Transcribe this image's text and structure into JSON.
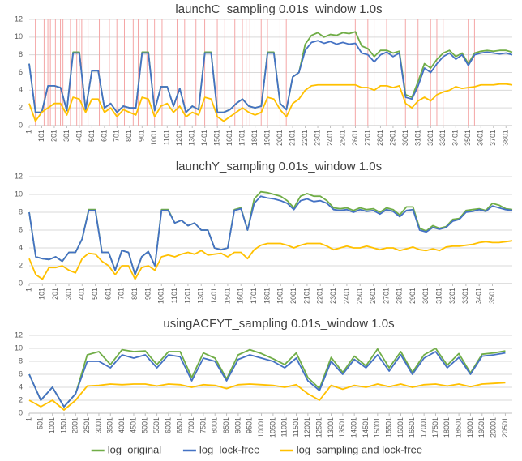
{
  "chart_data": [
    {
      "type": "line",
      "title": "launchC_sampling 0.01s_window 1.0s",
      "x": [
        1,
        51,
        101,
        151,
        201,
        251,
        301,
        351,
        401,
        451,
        501,
        551,
        601,
        651,
        701,
        751,
        801,
        851,
        901,
        951,
        1001,
        1051,
        1101,
        1151,
        1201,
        1251,
        1301,
        1351,
        1401,
        1451,
        1501,
        1551,
        1601,
        1651,
        1701,
        1751,
        1801,
        1851,
        1901,
        1951,
        2001,
        2051,
        2101,
        2151,
        2201,
        2251,
        2301,
        2351,
        2401,
        2451,
        2501,
        2551,
        2601,
        2651,
        2701,
        2751,
        2801,
        2851,
        2901,
        2951,
        3001,
        3051,
        3101,
        3151,
        3201,
        3251,
        3301,
        3351,
        3401,
        3451,
        3501,
        3551,
        3601,
        3651,
        3701,
        3751,
        3801,
        3851
      ],
      "series": [
        {
          "name": "log_original",
          "color": "#70ad47",
          "values": [
            7,
            1.5,
            1.5,
            4.5,
            4.5,
            4.3,
            1.7,
            8.3,
            8.3,
            1.8,
            6.2,
            6.2,
            2,
            2.5,
            1.5,
            2.2,
            2,
            2,
            8.3,
            8.3,
            1.7,
            4.4,
            4.4,
            2.2,
            4.2,
            1.5,
            2.2,
            1.8,
            8.3,
            8.3,
            1.5,
            1.5,
            1.8,
            2.5,
            3,
            2.2,
            2,
            2.2,
            8.3,
            8.3,
            2.5,
            1.8,
            5.5,
            6,
            9.2,
            10.2,
            10.5,
            10,
            10.3,
            10.2,
            10.5,
            10.4,
            10.6,
            9,
            8.7,
            7.8,
            8.5,
            8.5,
            8.2,
            8.4,
            3.5,
            3.2,
            5,
            7,
            6.5,
            7.5,
            8.2,
            8.5,
            7.8,
            8.2,
            7,
            8.2,
            8.4,
            8.5,
            8.4,
            8.5,
            8.5,
            8.3
          ]
        },
        {
          "name": "log_lock-free",
          "color": "#4472c4",
          "values": [
            7,
            1.5,
            1.5,
            4.5,
            4.5,
            4.3,
            1.7,
            8.2,
            8.2,
            1.8,
            6.2,
            6.2,
            2,
            2.5,
            1.5,
            2.2,
            2,
            2,
            8.2,
            8.2,
            1.7,
            4.4,
            4.4,
            2.2,
            4.2,
            1.5,
            2.2,
            1.8,
            8.2,
            8.2,
            1.5,
            1.5,
            1.8,
            2.5,
            3,
            2.2,
            2,
            2.2,
            8.2,
            8.2,
            2.5,
            1.8,
            5.5,
            6,
            8.5,
            9.4,
            9.6,
            9.3,
            9.5,
            9.2,
            9.4,
            9.2,
            9.3,
            8.2,
            8,
            7.2,
            8,
            8.3,
            7.8,
            8.2,
            3.2,
            3,
            4.5,
            6.5,
            6,
            7,
            7.8,
            8.2,
            7.5,
            8,
            6.8,
            8,
            8.2,
            8.3,
            8.2,
            8.1,
            8.2,
            8
          ]
        },
        {
          "name": "log_sampling and lock-free",
          "color": "#ffc000",
          "values": [
            2.5,
            0.5,
            1.5,
            2,
            2.5,
            2.5,
            1.2,
            3.2,
            3,
            1.5,
            3,
            3,
            1.5,
            2,
            1,
            1.8,
            1.5,
            1.2,
            3.2,
            3,
            1,
            2.2,
            2.5,
            1.5,
            2.2,
            1,
            1.5,
            1.2,
            3.2,
            3,
            1,
            0.5,
            1,
            1.5,
            2,
            1.5,
            1.2,
            1.5,
            3.2,
            3,
            1.8,
            1,
            2.5,
            3,
            4,
            4.5,
            4.6,
            4.6,
            4.6,
            4.6,
            4.6,
            4.6,
            4.6,
            4.3,
            4.3,
            4,
            4.5,
            4.5,
            4.3,
            4.5,
            2.5,
            2,
            2.8,
            3.2,
            2.8,
            3.5,
            3.8,
            4,
            4.4,
            4.2,
            4.3,
            4.4,
            4.6,
            4.6,
            4.6,
            4.7,
            4.7,
            4.6
          ]
        }
      ],
      "vlines": [
        50,
        120,
        150,
        170,
        210,
        250,
        270,
        330,
        380,
        400,
        420,
        470,
        560,
        640,
        700,
        760,
        830,
        870,
        940,
        1000,
        1060,
        1180,
        1240,
        1330,
        1400,
        1500,
        1560,
        1640,
        1700,
        1730,
        1760,
        1800,
        1850,
        1900,
        2000,
        2050,
        2600,
        2700,
        2750,
        2850,
        3000,
        3100,
        3200,
        3250,
        3300,
        3500,
        3550
      ],
      "vline_color": "#f4a6a6",
      "xlim": [
        1,
        3851
      ],
      "xticks": [
        1,
        101,
        201,
        301,
        401,
        501,
        601,
        701,
        801,
        901,
        1001,
        1101,
        1201,
        1301,
        1401,
        1501,
        1601,
        1701,
        1801,
        1901,
        2001,
        2101,
        2201,
        2301,
        2401,
        2501,
        2601,
        2701,
        2801,
        2901,
        3001,
        3101,
        3201,
        3301,
        3401,
        3501,
        3601,
        3701,
        3801
      ],
      "ylim": [
        0,
        12
      ],
      "yticks": [
        0,
        2,
        4,
        6,
        8,
        10,
        12
      ],
      "grid": true
    },
    {
      "type": "line",
      "title": "launchY_sampling 0.01s_window 1.0s",
      "x": [
        1,
        51,
        101,
        151,
        201,
        251,
        301,
        351,
        401,
        451,
        501,
        551,
        601,
        651,
        701,
        751,
        801,
        851,
        901,
        951,
        1001,
        1051,
        1101,
        1151,
        1201,
        1251,
        1301,
        1351,
        1401,
        1451,
        1501,
        1551,
        1601,
        1651,
        1701,
        1751,
        1801,
        1851,
        1901,
        1951,
        2001,
        2051,
        2101,
        2151,
        2201,
        2251,
        2301,
        2351,
        2401,
        2451,
        2501,
        2551,
        2601,
        2651,
        2701,
        2751,
        2801,
        2851,
        2901,
        2951,
        3001,
        3051,
        3101,
        3151,
        3201,
        3251,
        3301,
        3351,
        3401,
        3451,
        3501,
        3551,
        3601,
        3651
      ],
      "series": [
        {
          "name": "log_original",
          "color": "#70ad47",
          "values": [
            8,
            3,
            2.8,
            2.7,
            3,
            2.5,
            3.5,
            3.5,
            5,
            8.3,
            8.3,
            3.5,
            3.5,
            1.5,
            3.7,
            3.5,
            1,
            3,
            3.6,
            2,
            8.3,
            8.3,
            6.8,
            7.1,
            6.5,
            6.8,
            6,
            6,
            4,
            3.8,
            4,
            8.3,
            8.5,
            6,
            9.5,
            10.3,
            10.2,
            10,
            9.8,
            9.3,
            8.5,
            9.8,
            10.1,
            9.8,
            9.8,
            9.3,
            8.5,
            8.4,
            8.5,
            8.2,
            8.5,
            8.3,
            8.4,
            8,
            8.5,
            8.3,
            7.7,
            8.6,
            8.6,
            6.2,
            5.9,
            6.5,
            6.2,
            6.4,
            7.2,
            7.3,
            8.2,
            8.3,
            8.4,
            8.2,
            9,
            8.8,
            8.4,
            8.3
          ]
        },
        {
          "name": "log_lock-free",
          "color": "#4472c4",
          "values": [
            8,
            3,
            2.8,
            2.7,
            3,
            2.5,
            3.5,
            3.5,
            5,
            8.2,
            8.2,
            3.5,
            3.5,
            1.5,
            3.7,
            3.5,
            1,
            3,
            3.6,
            2,
            8.2,
            8.2,
            6.8,
            7.1,
            6.5,
            6.8,
            6,
            6,
            4,
            3.8,
            4,
            8.2,
            8.4,
            6,
            9,
            9.8,
            9.6,
            9.5,
            9.3,
            9,
            8.3,
            9.3,
            9.5,
            9.2,
            9.3,
            9,
            8.3,
            8.2,
            8.3,
            8,
            8.3,
            8.1,
            8.2,
            7.8,
            8.3,
            8.1,
            7.5,
            8.2,
            8.3,
            6,
            5.8,
            6.3,
            6.1,
            6.3,
            7,
            7.2,
            8,
            8.1,
            8.3,
            8.1,
            8.7,
            8.5,
            8.3,
            8.2
          ]
        },
        {
          "name": "log_sampling and lock-free",
          "color": "#ffc000",
          "values": [
            2.8,
            1,
            0.5,
            1.8,
            1.8,
            2,
            1.5,
            1.2,
            2.8,
            3.4,
            3.3,
            2.5,
            2,
            1,
            2,
            2,
            0.5,
            1.8,
            2,
            1.5,
            3,
            3.2,
            3,
            3.3,
            3.5,
            3.3,
            3.7,
            3.2,
            3.3,
            3.4,
            3,
            3.5,
            3.5,
            2.8,
            3.8,
            4.3,
            4.5,
            4.5,
            4.5,
            4.3,
            4,
            4.3,
            4.5,
            4.5,
            4.5,
            4.2,
            3.8,
            4,
            4.2,
            4,
            4,
            4.2,
            4,
            3.8,
            4,
            4,
            3.7,
            3.9,
            4.1,
            3.8,
            3.7,
            3.9,
            3.7,
            4.1,
            4.2,
            4.2,
            4.3,
            4.4,
            4.6,
            4.7,
            4.6,
            4.6,
            4.7,
            4.8
          ]
        }
      ],
      "xlim": [
        1,
        3651
      ],
      "xticks": [
        1,
        101,
        201,
        301,
        401,
        501,
        601,
        701,
        801,
        901,
        1001,
        1101,
        1201,
        1301,
        1401,
        1501,
        1601,
        1701,
        1801,
        1901,
        2001,
        2101,
        2201,
        2301,
        2401,
        2501,
        2601,
        2701,
        2801,
        2901,
        3001,
        3101,
        3201,
        3301,
        3401,
        3501
      ],
      "ylim": [
        0,
        12
      ],
      "yticks": [
        0,
        2,
        4,
        6,
        8,
        10,
        12
      ],
      "grid": true
    },
    {
      "type": "line",
      "title": "usingACFYT_sampling 0.01s_window 1.0s",
      "x": [
        1,
        501,
        1001,
        1501,
        2001,
        2501,
        3001,
        3501,
        4001,
        4501,
        5001,
        5501,
        6001,
        6501,
        7001,
        7501,
        8001,
        8501,
        9001,
        9501,
        10001,
        10501,
        11001,
        11501,
        12001,
        12501,
        13001,
        13501,
        14001,
        14501,
        15001,
        15501,
        16001,
        16501,
        17001,
        17501,
        18001,
        18501,
        19001,
        19501,
        20001,
        20501
      ],
      "series": [
        {
          "name": "log_original",
          "color": "#70ad47",
          "values": [
            6,
            2,
            4,
            1,
            3,
            9,
            9.5,
            7.5,
            9.8,
            9.5,
            9.6,
            7.5,
            9.5,
            9.5,
            5.5,
            9.3,
            8.5,
            5.3,
            9,
            9.8,
            9.2,
            8.4,
            7.5,
            9.3,
            5.5,
            3.8,
            8.6,
            6.3,
            8.8,
            7.3,
            9.9,
            7,
            9.5,
            6.3,
            9,
            10,
            7.4,
            9.2,
            6.2,
            9.1,
            9.3,
            9.6
          ]
        },
        {
          "name": "log_lock-free",
          "color": "#4472c4",
          "values": [
            6,
            2,
            4,
            1,
            3,
            8,
            8,
            7,
            9,
            8.5,
            9,
            7,
            9,
            8.7,
            5,
            8.5,
            8,
            5,
            8.3,
            9,
            8.5,
            8,
            7,
            8.5,
            5,
            3.5,
            8,
            6,
            8.3,
            7,
            9,
            6.5,
            9,
            6,
            8.5,
            9.5,
            7,
            8.6,
            6,
            8.8,
            9,
            9.3
          ]
        },
        {
          "name": "log_sampling and lock-free",
          "color": "#ffc000",
          "values": [
            2,
            1,
            2,
            0.5,
            2,
            4.2,
            4.3,
            4.5,
            4.4,
            4.5,
            4.5,
            4.2,
            4.5,
            4.4,
            4,
            4.4,
            4.3,
            3.8,
            4.4,
            4.5,
            4.4,
            4.3,
            4,
            4.4,
            3,
            2,
            4.3,
            3.7,
            4.3,
            4,
            4.5,
            4.1,
            4.5,
            4,
            4.4,
            4.5,
            4.2,
            4.5,
            4.1,
            4.5,
            4.6,
            4.7
          ]
        }
      ],
      "xlim": [
        1,
        20800
      ],
      "xticks": [
        1,
        501,
        1001,
        1501,
        2001,
        2501,
        3001,
        3501,
        4001,
        4501,
        5001,
        5501,
        6001,
        6501,
        7001,
        7501,
        8001,
        8501,
        9001,
        9501,
        10001,
        10501,
        11001,
        11501,
        12001,
        12501,
        13001,
        13501,
        14001,
        14501,
        15001,
        15501,
        16001,
        16501,
        17001,
        17501,
        18001,
        18501,
        19001,
        19501,
        20001,
        20501
      ],
      "ylim": [
        0,
        12
      ],
      "yticks": [
        0,
        2,
        4,
        6,
        8,
        10,
        12
      ],
      "grid": true
    }
  ]
}
